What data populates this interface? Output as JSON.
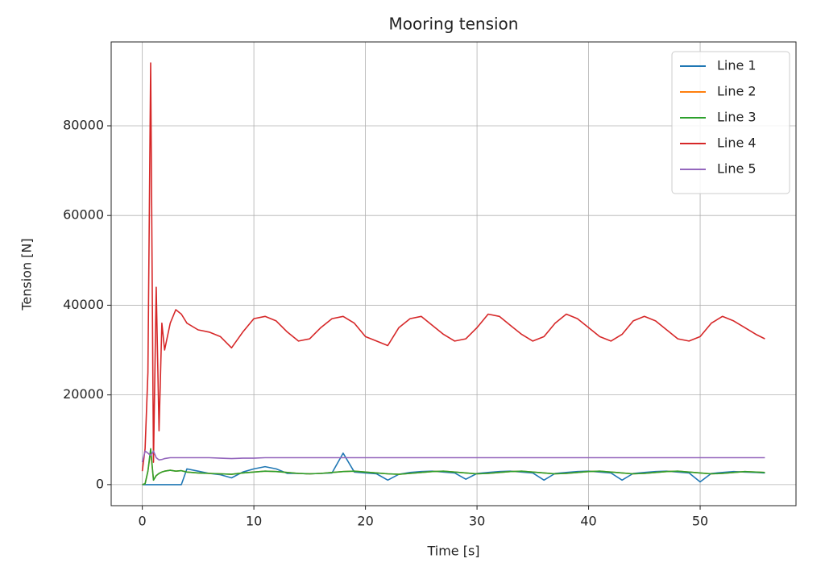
{
  "chart_data": {
    "type": "line",
    "title": "Mooring tension",
    "x_label": "Time [s]",
    "y_label": "Tension [N]",
    "x": [
      0,
      0.25,
      0.5,
      0.75,
      1,
      1.25,
      1.5,
      1.75,
      2,
      2.5,
      3,
      3.5,
      4,
      5,
      6,
      7,
      8,
      9,
      10,
      11,
      12,
      13,
      14,
      15,
      16,
      17,
      18,
      19,
      20,
      21,
      22,
      23,
      24,
      25,
      26,
      27,
      28,
      29,
      30,
      31,
      32,
      33,
      34,
      35,
      36,
      37,
      38,
      39,
      40,
      41,
      42,
      43,
      44,
      45,
      46,
      47,
      48,
      49,
      50,
      51,
      52,
      53,
      54,
      55,
      55.8
    ],
    "series": [
      {
        "name": "Line 1",
        "color": "#1f77b4",
        "values": [
          0,
          0,
          0,
          0,
          0,
          0,
          0,
          0,
          0,
          0,
          0,
          0,
          3500,
          3000,
          2500,
          2200,
          1500,
          2800,
          3500,
          4000,
          3500,
          2500,
          2500,
          2400,
          2500,
          2600,
          7000,
          2800,
          2600,
          2400,
          1000,
          2300,
          2700,
          2900,
          3000,
          2800,
          2600,
          1200,
          2500,
          2700,
          2900,
          3000,
          2800,
          2600,
          1000,
          2500,
          2700,
          2900,
          3000,
          2800,
          2600,
          1000,
          2500,
          2700,
          2900,
          3000,
          2800,
          2600,
          600,
          2500,
          2700,
          2900,
          2800,
          2700,
          2600
        ]
      },
      {
        "name": "Line 2",
        "color": "#ff7f0e",
        "values": [
          0,
          200,
          3000,
          7500,
          1000,
          2000,
          2500,
          2800,
          3000,
          3200,
          3000,
          3100,
          2800,
          2600,
          2500,
          2400,
          2300,
          2600,
          2800,
          3000,
          2900,
          2700,
          2500,
          2400,
          2500,
          2700,
          2900,
          3000,
          2800,
          2600,
          2400,
          2300,
          2500,
          2700,
          2900,
          3000,
          2800,
          2600,
          2400,
          2500,
          2700,
          2900,
          3000,
          2800,
          2600,
          2400,
          2500,
          2700,
          2900,
          3000,
          2800,
          2600,
          2400,
          2500,
          2700,
          2900,
          3000,
          2800,
          2600,
          2400,
          2500,
          2700,
          2900,
          2800,
          2700
        ]
      },
      {
        "name": "Line 3",
        "color": "#2ca02c",
        "values": [
          0,
          200,
          3000,
          8000,
          1000,
          2000,
          2500,
          2800,
          3000,
          3200,
          3000,
          3100,
          2800,
          2600,
          2500,
          2400,
          2300,
          2600,
          2800,
          3000,
          2900,
          2700,
          2500,
          2400,
          2500,
          2700,
          2900,
          3000,
          2800,
          2600,
          2400,
          2300,
          2500,
          2700,
          2900,
          3000,
          2800,
          2600,
          2400,
          2500,
          2700,
          2900,
          3000,
          2800,
          2600,
          2400,
          2500,
          2700,
          2900,
          3000,
          2800,
          2600,
          2400,
          2500,
          2700,
          2900,
          3000,
          2800,
          2600,
          2400,
          2500,
          2700,
          2900,
          2800,
          2700
        ]
      },
      {
        "name": "Line 4",
        "color": "#d62728",
        "values": [
          3000,
          8000,
          25000,
          94000,
          5000,
          44000,
          12000,
          36000,
          30000,
          36000,
          39000,
          38000,
          36000,
          34500,
          34000,
          33000,
          30500,
          34000,
          37000,
          37500,
          36500,
          34000,
          32000,
          32500,
          35000,
          37000,
          37500,
          36000,
          33000,
          32000,
          31000,
          35000,
          37000,
          37500,
          35500,
          33500,
          32000,
          32500,
          35000,
          38000,
          37500,
          35500,
          33500,
          32000,
          33000,
          36000,
          38000,
          37000,
          35000,
          33000,
          32000,
          33500,
          36500,
          37500,
          36500,
          34500,
          32500,
          32000,
          33000,
          36000,
          37500,
          36500,
          35000,
          33500,
          32500
        ]
      },
      {
        "name": "Line 5",
        "color": "#9467bd",
        "values": [
          5000,
          7500,
          7000,
          6500,
          7500,
          6000,
          5500,
          5600,
          5800,
          6000,
          6000,
          6000,
          6000,
          6000,
          6000,
          5900,
          5800,
          5900,
          5900,
          6000,
          6000,
          6000,
          6000,
          6000,
          6000,
          6000,
          6000,
          6000,
          6000,
          6000,
          6000,
          6000,
          6000,
          6000,
          6000,
          6000,
          6000,
          6000,
          6000,
          6000,
          6000,
          6000,
          6000,
          6000,
          6000,
          6000,
          6000,
          6000,
          6000,
          6000,
          6000,
          6000,
          6000,
          6000,
          6000,
          6000,
          6000,
          6000,
          6000,
          6000,
          6000,
          6000,
          6000,
          6000,
          6000
        ]
      }
    ],
    "xlim": [
      -2.79,
      58.59
    ],
    "ylim": [
      -4700,
      98700
    ],
    "xticks": [
      0,
      10,
      20,
      30,
      40,
      50
    ],
    "yticks": [
      0,
      20000,
      40000,
      60000,
      80000
    ],
    "grid": true,
    "legend": "upper right"
  }
}
